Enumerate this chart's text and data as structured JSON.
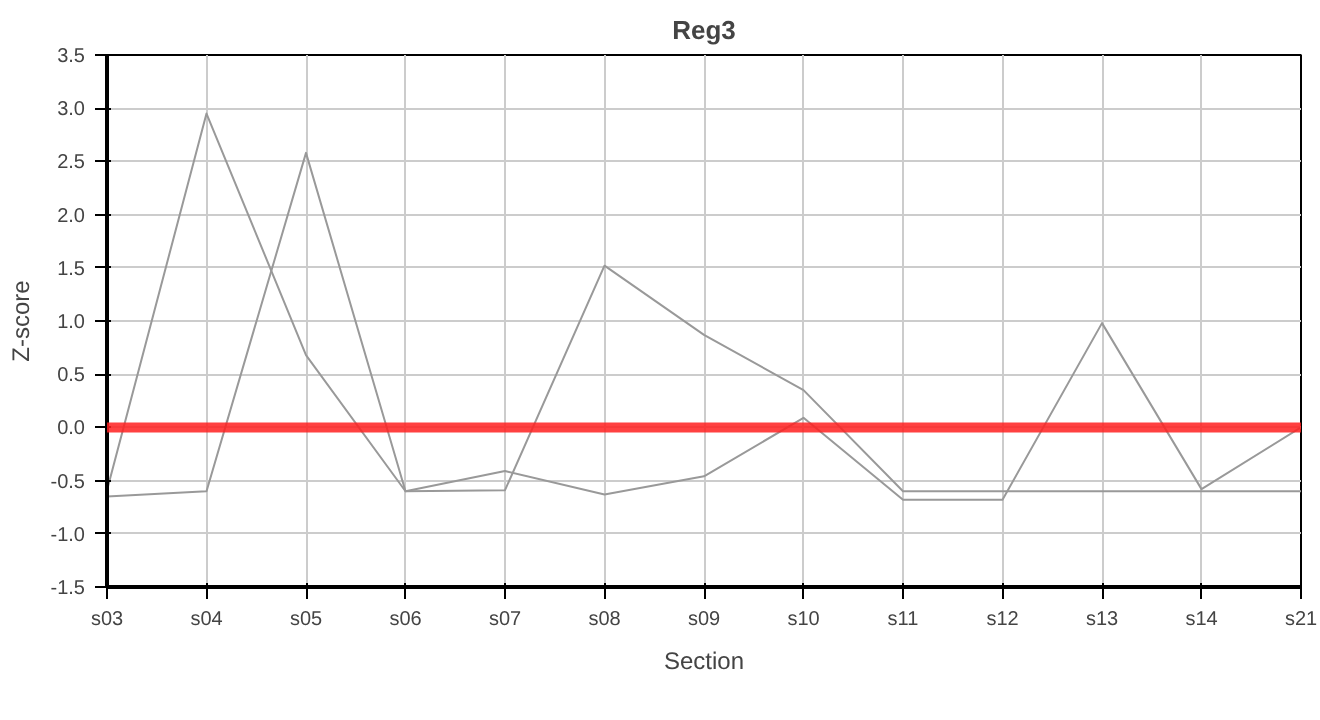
{
  "chart_data": {
    "type": "line",
    "title": "Reg3",
    "xlabel": "Section",
    "ylabel": "Z-score",
    "categories": [
      "s03",
      "s04",
      "s05",
      "s06",
      "s07",
      "s08",
      "s09",
      "s10",
      "s11",
      "s12",
      "s13",
      "s14",
      "s21"
    ],
    "series": [
      {
        "color": "#999999",
        "values": [
          -0.59,
          2.95,
          0.68,
          -0.6,
          -0.59,
          1.52,
          0.87,
          0.35,
          -0.6,
          -0.6,
          -0.6,
          -0.6,
          -0.6
        ]
      },
      {
        "color": "#999999",
        "values": [
          -0.65,
          -0.6,
          2.58,
          -0.6,
          -0.41,
          -0.63,
          -0.46,
          0.09,
          -0.68,
          -0.68,
          0.98,
          -0.58,
          0.0
        ]
      }
    ],
    "ylim": [
      -1.5,
      3.5
    ],
    "yticks": [
      -1.5,
      {
        "value": -1,
        "label": "-1.0"
      },
      -0.5,
      {
        "value": 0,
        "label": "0.0"
      },
      0.5,
      {
        "value": 1,
        "label": "1.0"
      },
      1.5,
      {
        "value": 2,
        "label": "2.0"
      },
      2.5,
      {
        "value": 3,
        "label": "3.0"
      },
      3.5
    ],
    "ref_lines": [
      {
        "axis": "y",
        "value": 0,
        "color": "#ff2020"
      }
    ],
    "grid": true,
    "marker": "none",
    "line_style": "solid"
  }
}
